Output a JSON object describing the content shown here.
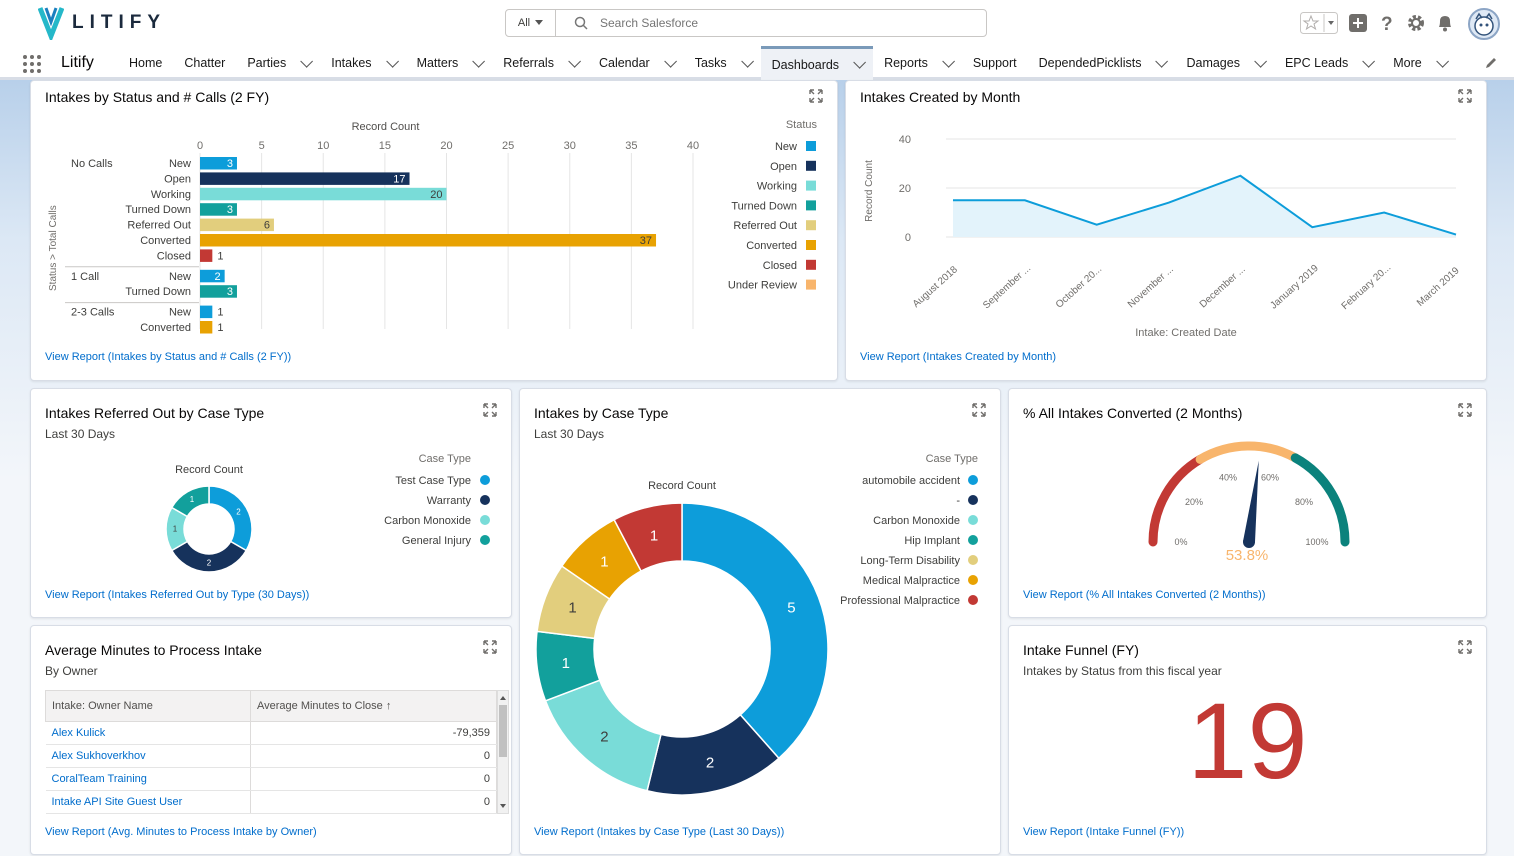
{
  "header": {
    "logo_text": "LITIFY",
    "search_scope": "All",
    "search_placeholder": "Search Salesforce"
  },
  "nav": {
    "app_name": "Litify",
    "items": [
      {
        "label": "Home",
        "dropdown": false
      },
      {
        "label": "Chatter",
        "dropdown": false
      },
      {
        "label": "Parties",
        "dropdown": true
      },
      {
        "label": "Intakes",
        "dropdown": true
      },
      {
        "label": "Matters",
        "dropdown": true
      },
      {
        "label": "Referrals",
        "dropdown": true
      },
      {
        "label": "Calendar",
        "dropdown": true
      },
      {
        "label": "Tasks",
        "dropdown": true
      },
      {
        "label": "Dashboards",
        "dropdown": true,
        "active": true
      },
      {
        "label": "Reports",
        "dropdown": true
      },
      {
        "label": "Support",
        "dropdown": false
      },
      {
        "label": "DependedPicklists",
        "dropdown": true
      },
      {
        "label": "Damages",
        "dropdown": true
      },
      {
        "label": "EPC Leads",
        "dropdown": true
      },
      {
        "label": "More",
        "dropdown": true
      }
    ]
  },
  "colors": {
    "new": "#0d9dda",
    "open": "#16325c",
    "working": "#79dcd8",
    "turned_down": "#12a09c",
    "referred_out": "#e2ce7d",
    "converted": "#e8a202",
    "closed": "#c23934",
    "under_review": "#f8b56c"
  },
  "cards": {
    "status_calls": {
      "title": "Intakes by Status and # Calls (2 FY)",
      "link": "View Report (Intakes by Status and # Calls (2 FY))"
    },
    "created_month": {
      "title": "Intakes Created by Month",
      "link": "View Report (Intakes Created by Month)"
    },
    "referred_out": {
      "title": "Intakes Referred Out by Case Type",
      "subtitle": "Last 30 Days",
      "link": "View Report (Intakes Referred Out by Type (30 Days))"
    },
    "case_type": {
      "title": "Intakes by Case Type",
      "subtitle": "Last 30 Days",
      "link": "View Report (Intakes by Case Type (Last 30 Days))"
    },
    "converted": {
      "title": "% All Intakes Converted (2 Months)",
      "link": "View Report (% All Intakes Converted (2 Months))"
    },
    "avg_minutes": {
      "title": "Average Minutes to Process Intake",
      "subtitle": "By Owner",
      "link": "View Report (Avg. Minutes to Process Intake by Owner)",
      "columns": [
        "Intake: Owner Name",
        "Average Minutes to Close"
      ],
      "sort_arrow": "↑",
      "rows": [
        {
          "name": "Alex Kulick",
          "value": "-79,359"
        },
        {
          "name": "Alex Sukhoverkhov",
          "value": "0"
        },
        {
          "name": "CoralTeam Training",
          "value": "0"
        },
        {
          "name": "Intake API Site Guest User",
          "value": "0"
        }
      ]
    },
    "funnel": {
      "title": "Intake Funnel (FY)",
      "subtitle": "Intakes by Status from this fiscal year",
      "value": "19",
      "link": "View Report (Intake Funnel (FY))"
    }
  },
  "chart_data": [
    {
      "type": "bar",
      "orientation": "horizontal",
      "title": "",
      "xlabel": "Record Count",
      "ylabel": "Status > Total Calls",
      "xlim": [
        0,
        40
      ],
      "xticks": [
        0,
        5,
        10,
        15,
        20,
        25,
        30,
        35,
        40
      ],
      "legend_title": "Status",
      "legend": [
        "New",
        "Open",
        "Working",
        "Turned Down",
        "Referred Out",
        "Converted",
        "Closed",
        "Under Review"
      ],
      "legend_position": "right",
      "groups": [
        {
          "name": "No Calls",
          "bars": [
            {
              "status": "New",
              "value": 3
            },
            {
              "status": "Open",
              "value": 17
            },
            {
              "status": "Working",
              "value": 20
            },
            {
              "status": "Turned Down",
              "value": 3
            },
            {
              "status": "Referred Out",
              "value": 6
            },
            {
              "status": "Converted",
              "value": 37
            },
            {
              "status": "Closed",
              "value": 1
            }
          ]
        },
        {
          "name": "1 Call",
          "bars": [
            {
              "status": "New",
              "value": 2
            },
            {
              "status": "Turned Down",
              "value": 3
            }
          ]
        },
        {
          "name": "2-3 Calls",
          "bars": [
            {
              "status": "New",
              "value": 1
            },
            {
              "status": "Converted",
              "value": 1
            }
          ]
        }
      ]
    },
    {
      "type": "area",
      "title": "",
      "xlabel": "Intake: Created Date",
      "ylabel": "Record Count",
      "ylim": [
        0,
        40
      ],
      "yticks": [
        0,
        20,
        40
      ],
      "categories": [
        "August 2018",
        "September ...",
        "October 20...",
        "November ...",
        "December ...",
        "January 2019",
        "February 20...",
        "March 2019"
      ],
      "values": [
        15,
        15,
        5,
        14,
        25,
        4,
        10,
        1
      ]
    },
    {
      "type": "pie",
      "variant": "donut",
      "title": "Record Count",
      "legend_title": "Case Type",
      "slices": [
        {
          "label": "Test Case Type",
          "value": 2,
          "color": "#0d9dda"
        },
        {
          "label": "Warranty",
          "value": 2,
          "color": "#16325c"
        },
        {
          "label": "Carbon Monoxide",
          "value": 1,
          "color": "#79dcd8"
        },
        {
          "label": "General Injury",
          "value": 1,
          "color": "#12a09c"
        }
      ]
    },
    {
      "type": "pie",
      "variant": "donut",
      "title": "Record Count",
      "legend_title": "Case Type",
      "legend": [
        "automobile accident",
        "-",
        "Carbon Monoxide",
        "Hip Implant",
        "Long-Term Disability",
        "Medical Malpractice",
        "Professional Malpractice"
      ],
      "slices": [
        {
          "label": "automobile accident",
          "value": 5,
          "color": "#0d9dda"
        },
        {
          "label": "-",
          "value": 2,
          "color": "#16325c"
        },
        {
          "label": "Carbon Monoxide",
          "value": 2,
          "color": "#79dcd8"
        },
        {
          "label": "Hip Implant",
          "value": 1,
          "color": "#12a09c"
        },
        {
          "label": "Long-Term Disability",
          "value": 1,
          "color": "#e2ce7d"
        },
        {
          "label": "Medical Malpractice",
          "value": 1,
          "color": "#e8a202"
        },
        {
          "label": "Professional Malpractice",
          "value": 1,
          "color": "#c23934"
        }
      ]
    },
    {
      "type": "gauge",
      "value": 53.8,
      "value_label": "53.8%",
      "ticks": [
        "0%",
        "20%",
        "40%",
        "60%",
        "80%",
        "100%"
      ],
      "bands": [
        {
          "from": 0,
          "to": 33,
          "color": "#c23934"
        },
        {
          "from": 33,
          "to": 66,
          "color": "#f8b56c"
        },
        {
          "from": 66,
          "to": 100,
          "color": "#0b827c"
        }
      ]
    }
  ]
}
